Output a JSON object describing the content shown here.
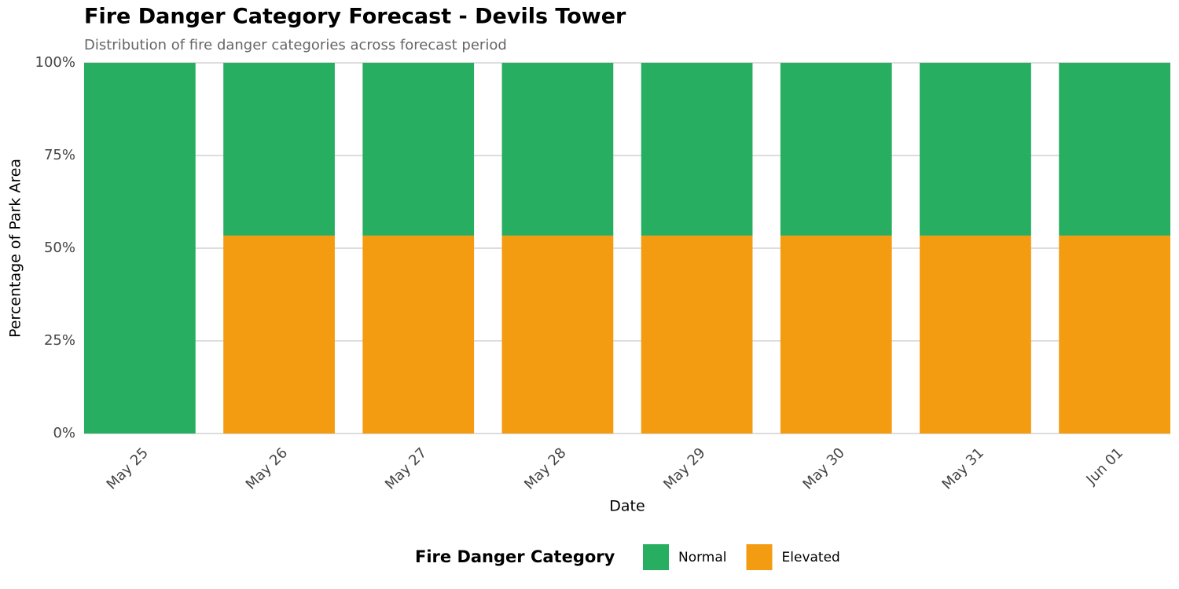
{
  "chart_data": {
    "type": "stacked_bar",
    "title": "Fire Danger Category Forecast - Devils Tower",
    "subtitle": "Distribution of fire danger categories across forecast period",
    "x_label": "Date",
    "y_label": "Percentage of Park Area",
    "categories": [
      "May 25",
      "May 26",
      "May 27",
      "May 28",
      "May 29",
      "May 30",
      "May 31",
      "Jun 01"
    ],
    "series": [
      {
        "name": "Normal",
        "color": "#27ae60",
        "values": [
          100,
          46.6,
          46.6,
          46.6,
          46.6,
          46.6,
          46.6,
          46.6
        ]
      },
      {
        "name": "Elevated",
        "color": "#f39c12",
        "values": [
          0,
          53.4,
          53.4,
          53.4,
          53.4,
          53.4,
          53.4,
          53.4
        ]
      }
    ],
    "legend_title": "Fire Danger Category",
    "legend_position": "bottom",
    "ylim": [
      0,
      100
    ],
    "yticks": [
      {
        "value": 0,
        "label": "0%"
      },
      {
        "value": 25,
        "label": "25%"
      },
      {
        "value": 50,
        "label": "50%"
      },
      {
        "value": 75,
        "label": "75%"
      },
      {
        "value": 100,
        "label": "100%"
      }
    ],
    "grid": true
  }
}
